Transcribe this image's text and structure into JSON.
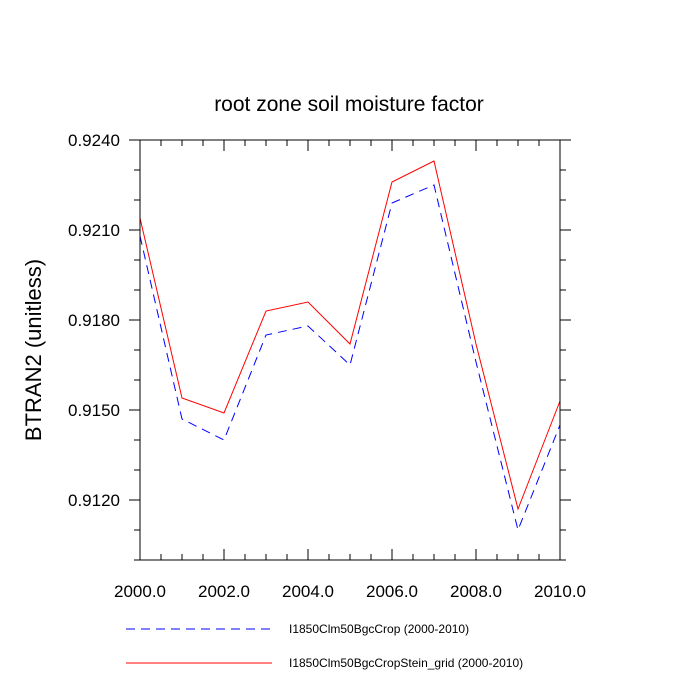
{
  "chart_data": {
    "type": "line",
    "title": "root zone soil moisture factor",
    "xlabel": "",
    "ylabel": "BTRAN2  (unitless)",
    "xlim": [
      2000,
      2010
    ],
    "ylim": [
      0.91,
      0.924
    ],
    "x_ticks": [
      2000.0,
      2002.0,
      2004.0,
      2006.0,
      2008.0,
      2010.0
    ],
    "x_tick_labels": [
      "2000.0",
      "2002.0",
      "2004.0",
      "2006.0",
      "2008.0",
      "2010.0"
    ],
    "y_ticks": [
      0.912,
      0.915,
      0.918,
      0.921,
      0.924
    ],
    "y_tick_labels": [
      "0.9120",
      "0.9150",
      "0.9180",
      "0.9210",
      "0.9240"
    ],
    "grid": false,
    "legend_position": "bottom",
    "x": [
      2000,
      2001,
      2002,
      2003,
      2004,
      2005,
      2006,
      2007,
      2008,
      2009,
      2010
    ],
    "series": [
      {
        "name": "I1850Clm50BgcCrop (2000-2010)",
        "color": "#0000ff",
        "style": "dashed",
        "values": [
          0.9208,
          0.9147,
          0.914,
          0.9175,
          0.9178,
          0.9165,
          0.9219,
          0.9225,
          0.9166,
          0.911,
          0.9145
        ]
      },
      {
        "name": "I1850Clm50BgcCropStein_grid (2000-2010)",
        "color": "#ff0000",
        "style": "solid",
        "values": [
          0.9214,
          0.9154,
          0.9149,
          0.9183,
          0.9186,
          0.9172,
          0.9226,
          0.9233,
          0.9172,
          0.9117,
          0.9153
        ]
      }
    ]
  }
}
